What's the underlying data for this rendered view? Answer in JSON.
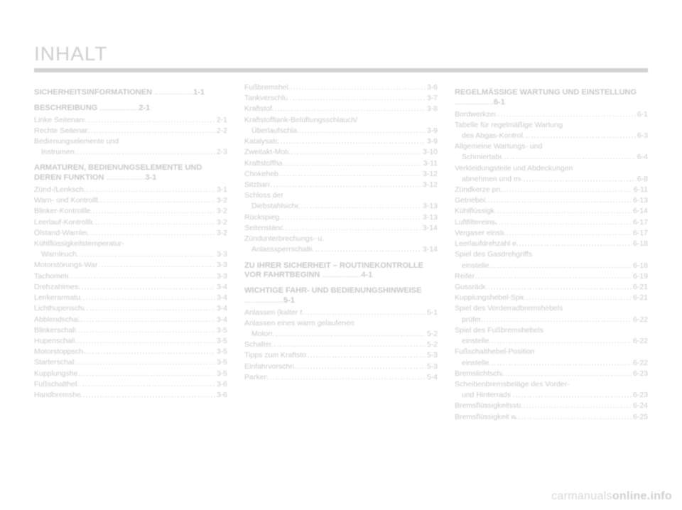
{
  "page_title": "INHALT",
  "watermark_a": "carmanuals",
  "watermark_b": "online.info",
  "dot_fill": "............................................................",
  "columns": [
    {
      "sections": [
        {
          "title": "SICHERHEITSINFORMATIONEN",
          "title_page": "1-1",
          "entries": []
        },
        {
          "title": "BESCHREIBUNG",
          "title_page": "2-1",
          "entries": [
            {
              "label": "Linke Seitenansicht",
              "page": "2-1"
            },
            {
              "label": "Rechte Seitenansicht",
              "page": "2-2"
            },
            {
              "label": "Bedienungselemente und",
              "page": ""
            },
            {
              "label": "Instrumente",
              "indent": true,
              "page": "2-3"
            }
          ]
        },
        {
          "title": "ARMATUREN, BEDIENUNGSELEMENTE UND DEREN FUNKTION",
          "title_page": "3-1",
          "entries": [
            {
              "label": "Zünd-/Lenkschloss",
              "page": "3-1"
            },
            {
              "label": "Warn- und Kontrollleuchten",
              "page": "3-2"
            },
            {
              "label": "Blinker-Kontrollleuchte",
              "page": "3-2"
            },
            {
              "label": "Leerlauf-Kontrollleuchte",
              "page": "3-2"
            },
            {
              "label": "Ölstand-Warnleuchte",
              "page": "3-2"
            },
            {
              "label": "Kühlflüssigkeitstemperatur-",
              "page": ""
            },
            {
              "label": "Warnleuchte",
              "indent": true,
              "page": "3-3"
            },
            {
              "label": "Motorstörungs-Warnleuchte",
              "page": "3-3"
            },
            {
              "label": "Tachometer",
              "page": "3-3"
            },
            {
              "label": "Drehzahlmesser",
              "page": "3-4"
            },
            {
              "label": "Lenkerarmaturen",
              "page": "3-4"
            },
            {
              "label": "Lichthupenschalter",
              "page": "3-4"
            },
            {
              "label": "Abblendschalter",
              "page": "3-4"
            },
            {
              "label": "Blinkerschalter",
              "page": "3-5"
            },
            {
              "label": "Hupenschalter",
              "page": "3-5"
            },
            {
              "label": "Motorstoppschalter",
              "page": "3-5"
            },
            {
              "label": "Starterschalter",
              "page": "3-5"
            },
            {
              "label": "Kupplungshebel",
              "page": "3-5"
            },
            {
              "label": "Fußschalthebel",
              "page": "3-6"
            },
            {
              "label": "Handbremshebel",
              "page": "3-6"
            }
          ]
        }
      ]
    },
    {
      "sections": [
        {
          "title": "",
          "title_page": "",
          "entries": [
            {
              "label": "Fußbremshebel",
              "page": "3-6"
            },
            {
              "label": "Tankverschluss",
              "page": "3-7"
            },
            {
              "label": "Kraftstoff",
              "page": "3-8"
            },
            {
              "label": "Kraftstofftank-Belüftungsschlauch/",
              "page": ""
            },
            {
              "label": "Überlaufschlauch",
              "indent": true,
              "page": "3-9"
            },
            {
              "label": "Katalysator",
              "page": "3-9"
            },
            {
              "label": "Zweitakt-Motoröl",
              "page": "3-10"
            },
            {
              "label": "Kraftstoffhahn",
              "page": "3-11"
            },
            {
              "label": "Chokehebel",
              "page": "3-12"
            },
            {
              "label": "Sitzbank",
              "page": "3-12"
            },
            {
              "label": "Schloss der",
              "page": ""
            },
            {
              "label": "Diebstahlsicherung",
              "indent": true,
              "page": "3-13"
            },
            {
              "label": "Rückspiegel",
              "page": "3-13"
            },
            {
              "label": "Seitenständer",
              "page": "3-14"
            },
            {
              "label": "Zündunterbrechungs- u.",
              "page": ""
            },
            {
              "label": "Anlasssperrschalter-System",
              "indent": true,
              "page": "3-14"
            }
          ]
        },
        {
          "title": "ZU IHRER SICHERHEIT – ROUTINEKONTROLLE VOR FAHRTBEGINN",
          "title_page": "4-1",
          "entries": []
        },
        {
          "title": "WICHTIGE FAHR- UND BEDIENUNGSHINWEISE",
          "title_page": "5-1",
          "entries": [
            {
              "label": "Anlassen (kalter Motor)",
              "page": "5-1"
            },
            {
              "label": "Anlassen eines warm gelaufenen",
              "page": ""
            },
            {
              "label": "Motors",
              "indent": true,
              "page": "5-2"
            },
            {
              "label": "Schalten",
              "page": "5-2"
            },
            {
              "label": "Tipps zum Kraftstoffsparen",
              "page": "5-3"
            },
            {
              "label": "Einfahrvorschriften",
              "page": "5-3"
            },
            {
              "label": "Parken",
              "page": "5-4"
            }
          ]
        }
      ]
    },
    {
      "sections": [
        {
          "title": "REGELMÄSSIGE WARTUNG UND EINSTELLUNG",
          "title_page": "6-1",
          "entries": [
            {
              "label": "Bordwerkzeug",
              "page": "6-1"
            },
            {
              "label": "Tabelle für regelmäßige Wartung",
              "page": ""
            },
            {
              "label": "des Abgas-Kontrollsystems",
              "indent": true,
              "page": "6-3"
            },
            {
              "label": "Allgemeine Wartungs- und",
              "page": ""
            },
            {
              "label": "Schmiertabelle",
              "indent": true,
              "page": "6-4"
            },
            {
              "label": "Verkleidungsteile und Abdeckungen",
              "page": ""
            },
            {
              "label": "abnehmen und montieren",
              "indent": true,
              "page": "6-8"
            },
            {
              "label": "Zündkerze prüfen",
              "page": "6-11"
            },
            {
              "label": "Getriebeöl",
              "page": "6-13"
            },
            {
              "label": "Kühlflüssigkeit",
              "page": "6-14"
            },
            {
              "label": "Luftfiltereinsatz",
              "page": "6-17"
            },
            {
              "label": "Vergaser einstellen",
              "page": "6-17"
            },
            {
              "label": "Leerlaufdrehzahl einstellen",
              "page": "6-18"
            },
            {
              "label": "Spiel des Gasdrehgriffs",
              "page": ""
            },
            {
              "label": "einstellen",
              "indent": true,
              "page": "6-18"
            },
            {
              "label": "Reifen",
              "page": "6-19"
            },
            {
              "label": "Gussräder",
              "page": "6-21"
            },
            {
              "label": "Kupplungshebel-Spiel einstellen",
              "page": "6-21"
            },
            {
              "label": "Spiel des Vorderradbremshebels",
              "page": ""
            },
            {
              "label": "prüfen",
              "indent": true,
              "page": "6-22"
            },
            {
              "label": "Spiel des Fußbremshebels",
              "page": ""
            },
            {
              "label": "einstellen",
              "indent": true,
              "page": "6-22"
            },
            {
              "label": "Fußschalthebel-Position",
              "page": ""
            },
            {
              "label": "einstellen",
              "indent": true,
              "page": "6-22"
            },
            {
              "label": "Bremslichtschalter",
              "page": "6-23"
            },
            {
              "label": "Scheibenbremsbeläge des Vorder-",
              "page": ""
            },
            {
              "label": "und Hinterrads prüfen",
              "indent": true,
              "page": "6-23"
            },
            {
              "label": "Bremsflüssigkeitsstand prüfen",
              "page": "6-24"
            },
            {
              "label": "Bremsflüssigkeit wechseln",
              "page": "6-25"
            }
          ]
        }
      ]
    }
  ]
}
